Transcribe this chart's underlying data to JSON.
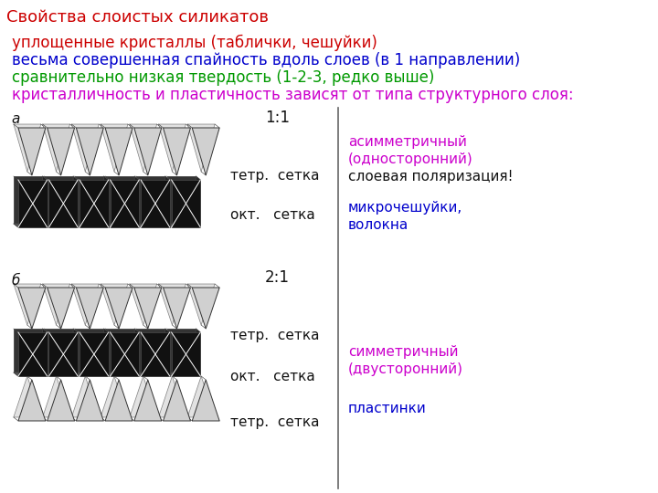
{
  "title": "Свойства слоистых силикатов",
  "title_color": "#cc0000",
  "title_fontsize": 13,
  "line1": {
    "text": "уплощенные кристаллы (таблички, чешуйки)",
    "color": "#cc0000",
    "fontsize": 12
  },
  "line2": {
    "text": "весьма совершенная спайность вдоль слоев (в 1 направлении)",
    "color": "#0000cc",
    "fontsize": 12
  },
  "line3": {
    "text": "сравнительно низкая твердость (1-2-3, редко выше)",
    "color": "#009900",
    "fontsize": 12
  },
  "line4": {
    "text": "кристалличность и пластичность зависят от типа структурного слоя:",
    "color": "#cc00cc",
    "fontsize": 12
  },
  "label_a": {
    "text": "а",
    "fontsize": 11
  },
  "label_b": {
    "text": "б",
    "fontsize": 11
  },
  "label_11": {
    "text": "1:1",
    "fontsize": 12
  },
  "label_21": {
    "text": "2:1",
    "fontsize": 12
  },
  "label_tetr": {
    "text": "тетр.  сетка",
    "fontsize": 11
  },
  "label_okt": {
    "text": "окт.   сетка",
    "fontsize": 11
  },
  "right_texts": [
    {
      "text": "асимметричный",
      "color": "#cc00cc",
      "fontsize": 11
    },
    {
      "text": "(односторонний)",
      "color": "#cc00cc",
      "fontsize": 11
    },
    {
      "text": "слоевая поляризация!",
      "color": "#111111",
      "fontsize": 11
    },
    {
      "text": "микрочешуйки,",
      "color": "#0000cc",
      "fontsize": 11
    },
    {
      "text": "волокна",
      "color": "#0000cc",
      "fontsize": 11
    },
    {
      "text": "симметричный",
      "color": "#cc00cc",
      "fontsize": 11
    },
    {
      "text": "(двусторонний)",
      "color": "#cc00cc",
      "fontsize": 11
    },
    {
      "text": "пластинки",
      "color": "#0000cc",
      "fontsize": 11
    }
  ],
  "bg_color": "#ffffff",
  "divider_color": "#666666"
}
